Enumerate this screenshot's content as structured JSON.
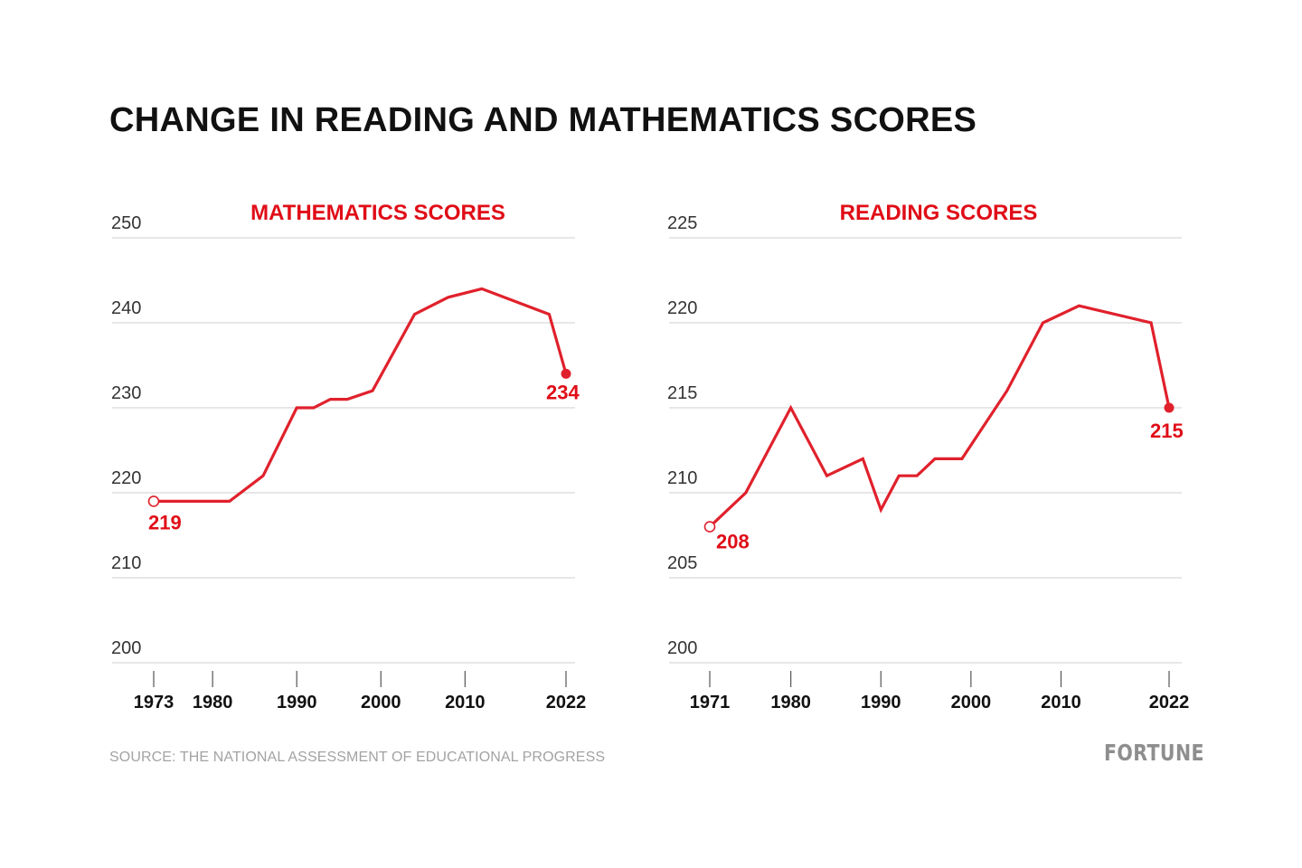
{
  "title": "CHANGE IN READING AND MATHEMATICS SCORES",
  "source": "SOURCE: THE NATIONAL ASSESSMENT OF EDUCATIONAL PROGRESS",
  "brand": "FORTUNE",
  "colors": {
    "line": "#e0212c",
    "label": "#e00d17",
    "grid": "#cfcfcf",
    "axis_text": "#333333",
    "tick_text": "#111111"
  },
  "chart_data": [
    {
      "type": "line",
      "title": "MATHEMATICS SCORES",
      "xlabel": "",
      "ylabel": "",
      "ylim": [
        200,
        250
      ],
      "xlim": [
        1973,
        2022
      ],
      "y_ticks": [
        250,
        240,
        230,
        220,
        210,
        200
      ],
      "x_ticks": [
        1973,
        1980,
        1990,
        2000,
        2010,
        2022
      ],
      "grid": true,
      "series": [
        {
          "x": [
            1973,
            1978,
            1982,
            1986,
            1990,
            1992,
            1994,
            1996,
            1999,
            2004,
            2008,
            2012,
            2020,
            2022
          ],
          "y": [
            219,
            219,
            219,
            222,
            230,
            230,
            231,
            231,
            232,
            241,
            243,
            244,
            241,
            234
          ]
        }
      ],
      "annotations": [
        {
          "x": 1973,
          "y": 219,
          "text": "219",
          "marker": "open"
        },
        {
          "x": 2022,
          "y": 234,
          "text": "234",
          "marker": "filled"
        }
      ]
    },
    {
      "type": "line",
      "title": "READING SCORES",
      "xlabel": "",
      "ylabel": "",
      "ylim": [
        200,
        225
      ],
      "xlim": [
        1971,
        2022
      ],
      "y_ticks": [
        225,
        220,
        215,
        210,
        205,
        200
      ],
      "x_ticks": [
        1971,
        1980,
        1990,
        2000,
        2010,
        2022
      ],
      "grid": true,
      "series": [
        {
          "x": [
            1971,
            1975,
            1980,
            1984,
            1988,
            1990,
            1992,
            1994,
            1996,
            1999,
            2004,
            2008,
            2012,
            2020,
            2022
          ],
          "y": [
            208,
            210,
            215,
            211,
            212,
            209,
            211,
            211,
            212,
            212,
            216,
            220,
            221,
            220,
            215
          ]
        }
      ],
      "annotations": [
        {
          "x": 1971,
          "y": 208,
          "text": "208",
          "marker": "open"
        },
        {
          "x": 2022,
          "y": 215,
          "text": "215",
          "marker": "filled"
        }
      ]
    }
  ]
}
